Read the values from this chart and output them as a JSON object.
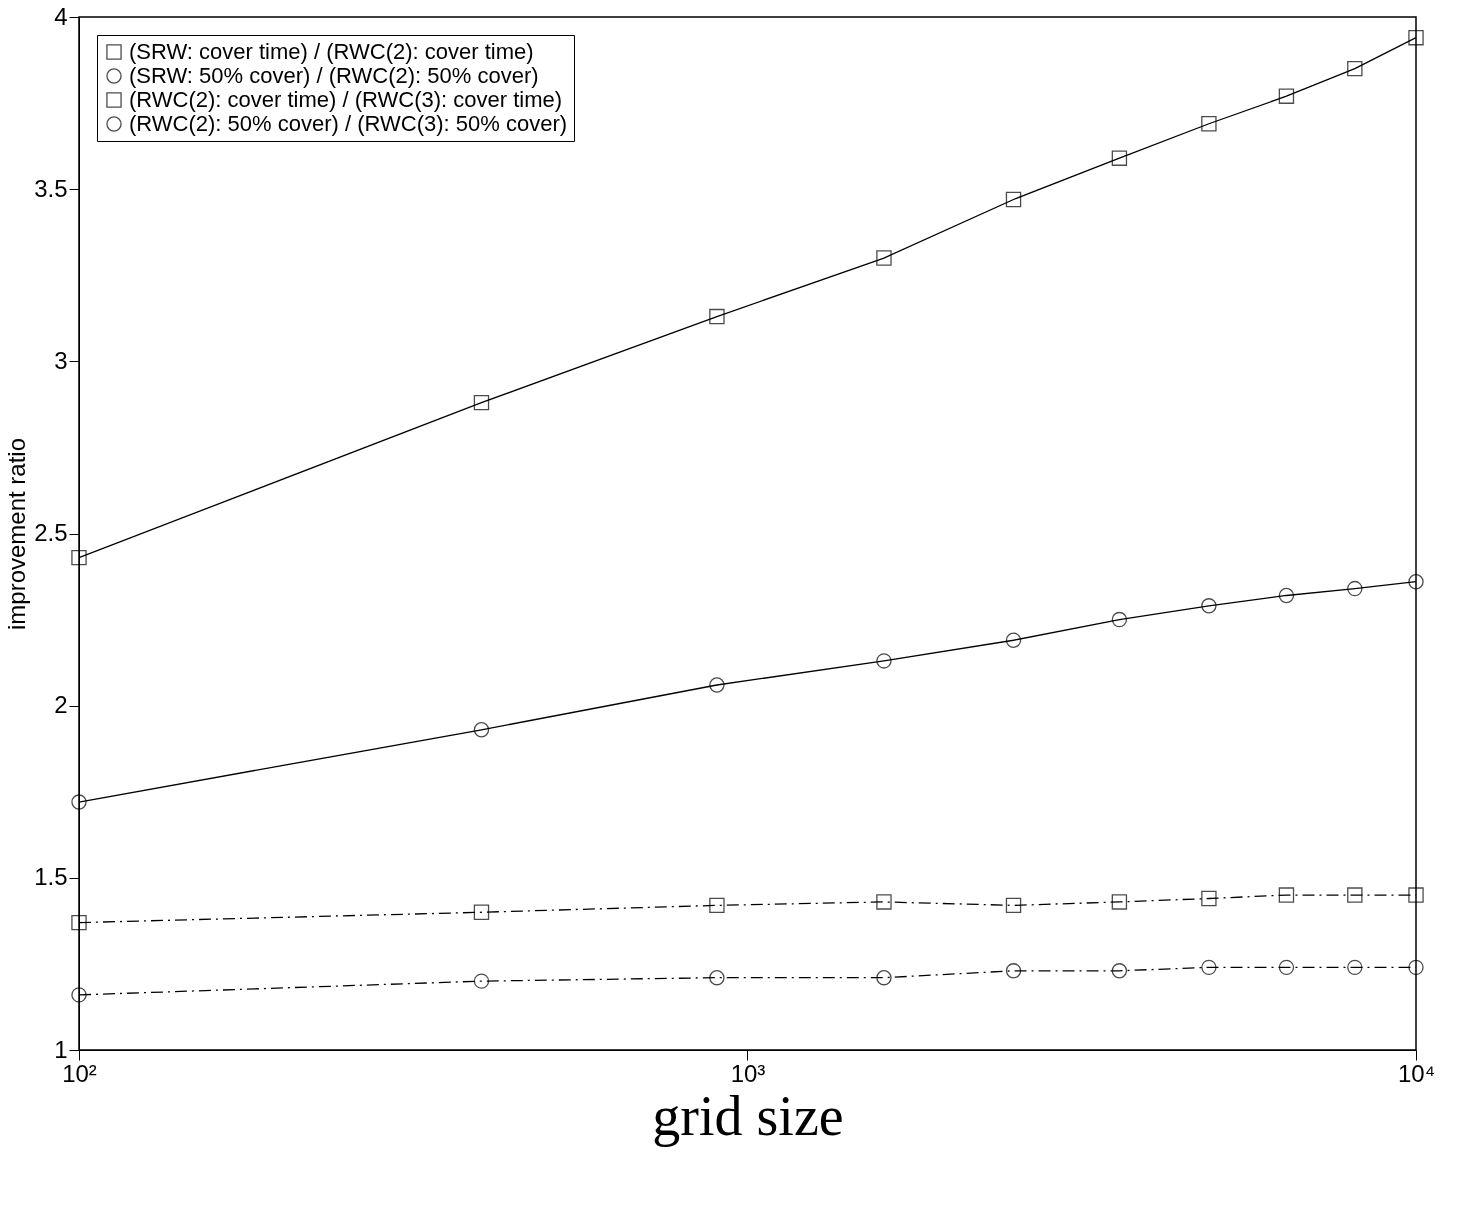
{
  "chart_data": {
    "type": "line",
    "xlabel": "grid size",
    "ylabel": "improvement ratio",
    "x": [
      100,
      400,
      900,
      1600,
      2500,
      3600,
      4900,
      6400,
      8100,
      10000
    ],
    "series": [
      {
        "name": "(SRW: cover time) / (RWC(2): cover time)",
        "color": "#000000",
        "marker": "square",
        "line_style": "solid",
        "values": [
          2.43,
          2.88,
          3.13,
          3.3,
          3.47,
          3.59,
          3.69,
          3.77,
          3.85,
          3.94
        ]
      },
      {
        "name": "(SRW: 50% cover) / (RWC(2): 50% cover)",
        "color": "#000000",
        "marker": "circle",
        "line_style": "solid",
        "values": [
          1.72,
          1.93,
          2.06,
          2.13,
          2.19,
          2.25,
          2.29,
          2.32,
          2.34,
          2.36
        ]
      },
      {
        "name": "(RWC(2): cover time) / (RWC(3): cover time)",
        "color": "#000000",
        "marker": "square",
        "line_style": "dashed",
        "values": [
          1.37,
          1.4,
          1.42,
          1.43,
          1.42,
          1.43,
          1.44,
          1.45,
          1.45,
          1.45
        ]
      },
      {
        "name": "(RWC(2): 50% cover) / (RWC(3): 50% cover)",
        "color": "#000000",
        "marker": "circle",
        "line_style": "dashed",
        "values": [
          1.16,
          1.2,
          1.21,
          1.21,
          1.23,
          1.23,
          1.24,
          1.24,
          1.24,
          1.24
        ]
      }
    ],
    "log": "x",
    "xlim": [
      100,
      10000
    ],
    "xticks": [
      {
        "value": 100,
        "label": "10²"
      },
      {
        "value": 1000,
        "label": "10³"
      },
      {
        "value": 10000,
        "label": "10⁴"
      }
    ],
    "ylim": [
      1,
      4
    ],
    "yticks": [
      1,
      1.5,
      2,
      2.5,
      3,
      3.5,
      4
    ],
    "grid": false,
    "legend": "top left"
  }
}
